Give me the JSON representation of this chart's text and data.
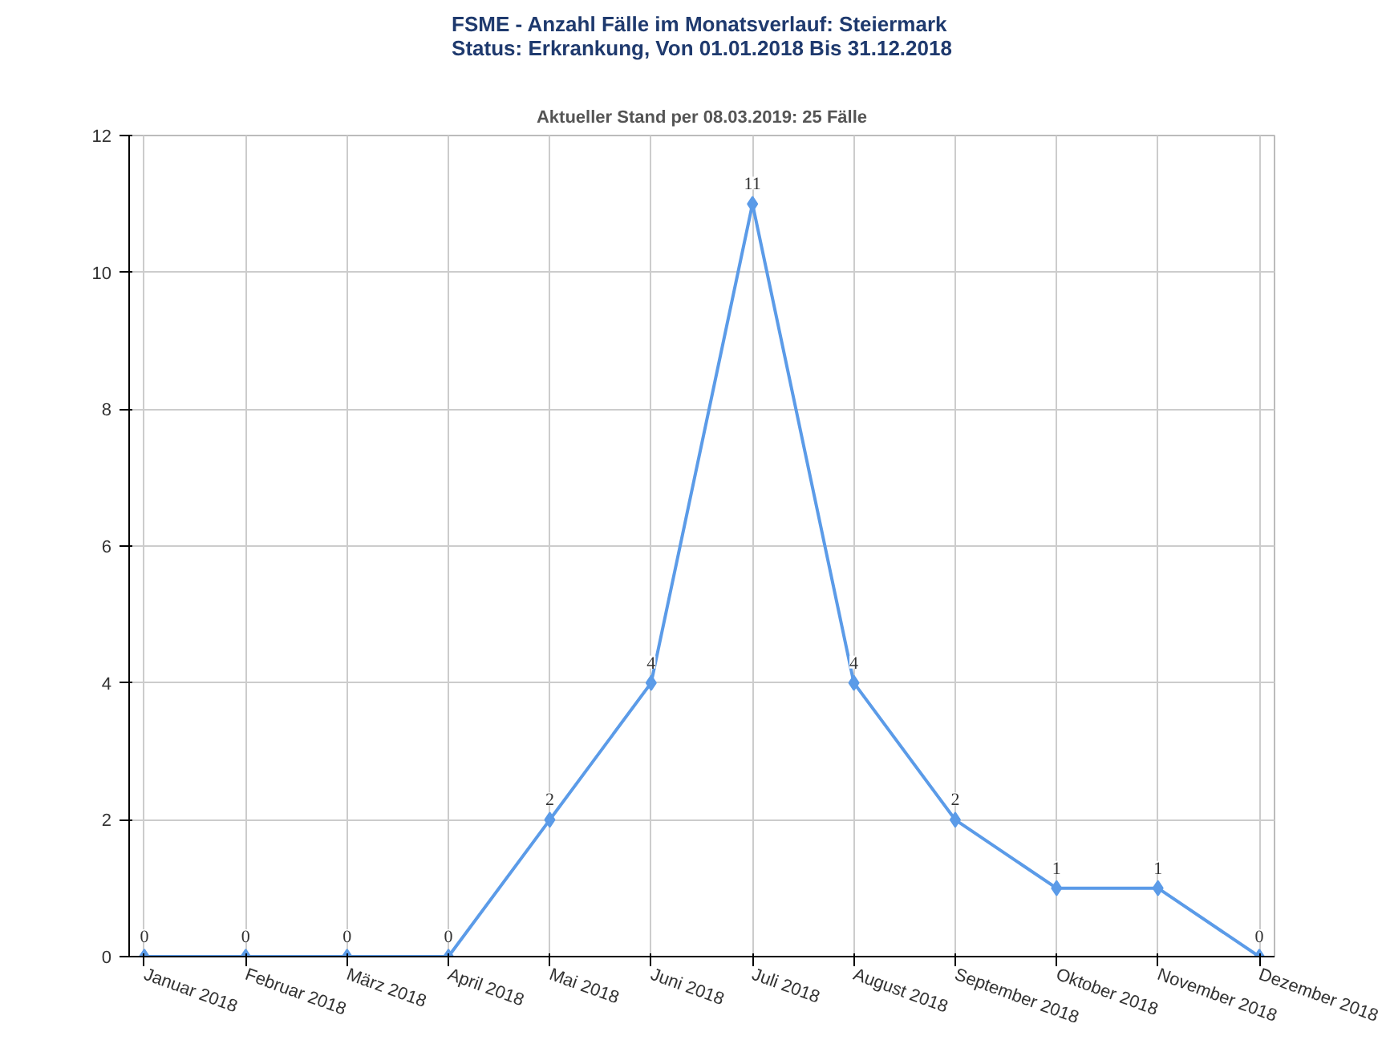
{
  "chart_data": {
    "type": "line",
    "title": "FSME - Anzahl Fälle im Monatsverlauf: Steiermark\nStatus: Erkrankung, Von 01.01.2018 Bis 31.12.2018",
    "subtitle": "Aktueller Stand per 08.03.2019: 25 Fälle",
    "categories": [
      "Januar 2018",
      "Februar 2018",
      "März 2018",
      "April 2018",
      "Mai 2018",
      "Juni 2018",
      "Juli 2018",
      "August 2018",
      "September 2018",
      "Oktober 2018",
      "November 2018",
      "Dezember 2018"
    ],
    "series": [
      {
        "color": "#5b9be8",
        "values": [
          0,
          0,
          0,
          0,
          2,
          4,
          11,
          4,
          2,
          1,
          1,
          0
        ]
      }
    ],
    "ylim": [
      0,
      12
    ],
    "yticks": [
      0,
      2,
      4,
      6,
      8,
      10,
      12
    ],
    "grid": true,
    "marker": "diamond",
    "line_style": "solid",
    "data_labels": true
  }
}
